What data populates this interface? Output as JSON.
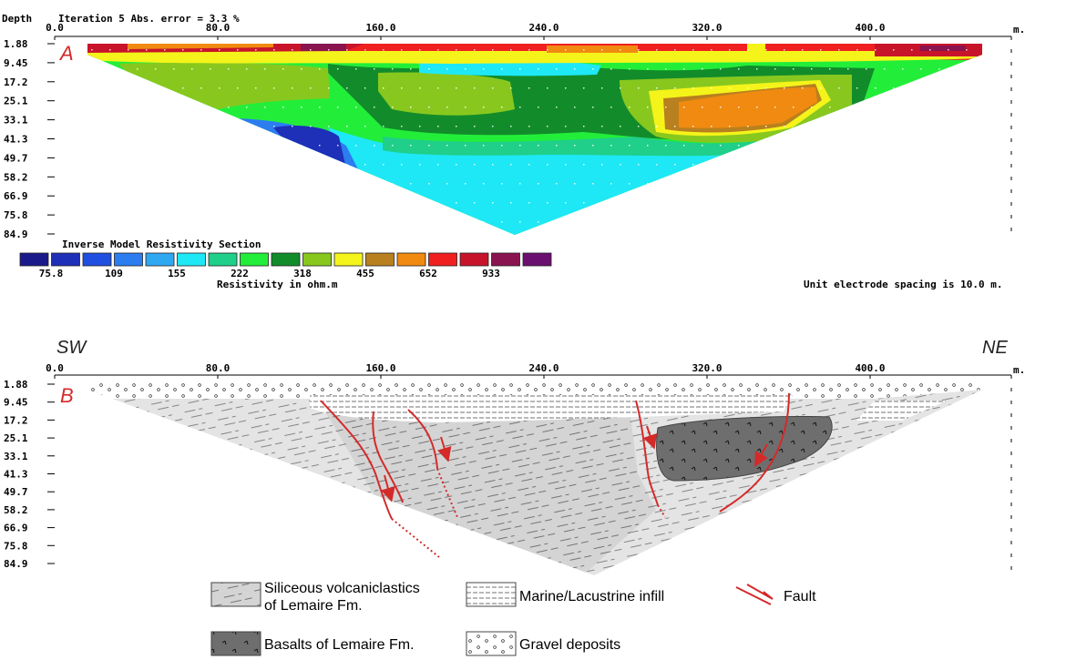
{
  "panel_a": {
    "letter": "A",
    "header_depth": "Depth",
    "header_iteration": "Iteration 5 Abs. error = 3.3 %",
    "x_ticks": [
      "0.0",
      "80.0",
      "160.0",
      "240.0",
      "320.0",
      "400.0"
    ],
    "x_unit": "m.",
    "depth_ticks": [
      "1.88",
      "9.45",
      "17.2",
      "25.1",
      "33.1",
      "41.3",
      "49.7",
      "58.2",
      "66.9",
      "75.8",
      "84.9"
    ],
    "colorbar_title": "Inverse Model Resistivity Section",
    "colorbar_colors": [
      "#1a1a8a",
      "#1e2fb8",
      "#1f4fe0",
      "#2b7df0",
      "#2fa8f2",
      "#1ee8f5",
      "#1fcf8a",
      "#22ee3a",
      "#128c2a",
      "#88c81e",
      "#f4f41a",
      "#b8801e",
      "#f08a10",
      "#f02020",
      "#c8142a",
      "#8a1450",
      "#6a1070"
    ],
    "colorbar_labels": [
      "75.8",
      "109",
      "155",
      "222",
      "318",
      "455",
      "652",
      "933"
    ],
    "colorbar_unit": "Resistivity in ohm.m",
    "spacing_note": "Unit electrode spacing is 10.0 m."
  },
  "panel_b": {
    "letter": "B",
    "dir_left": "SW",
    "dir_right": "NE",
    "x_ticks": [
      "0.0",
      "80.0",
      "160.0",
      "240.0",
      "320.0",
      "400.0"
    ],
    "x_unit": "m.",
    "depth_ticks": [
      "1.88",
      "9.45",
      "17.2",
      "25.1",
      "33.1",
      "41.3",
      "49.7",
      "58.2",
      "66.9",
      "75.8",
      "84.9"
    ]
  },
  "legend": {
    "siliceous": "Siliceous volcaniclastics",
    "siliceous_2": "of Lemaire Fm.",
    "marine": "Marine/Lacustrine infill",
    "fault": "Fault",
    "basalts": "Basalts of Lemaire Fm.",
    "gravel": "Gravel deposits"
  },
  "colors": {
    "fault": "#d42a2a",
    "siliceous": "#d4d4d4",
    "basalt": "#6e6e6e"
  }
}
